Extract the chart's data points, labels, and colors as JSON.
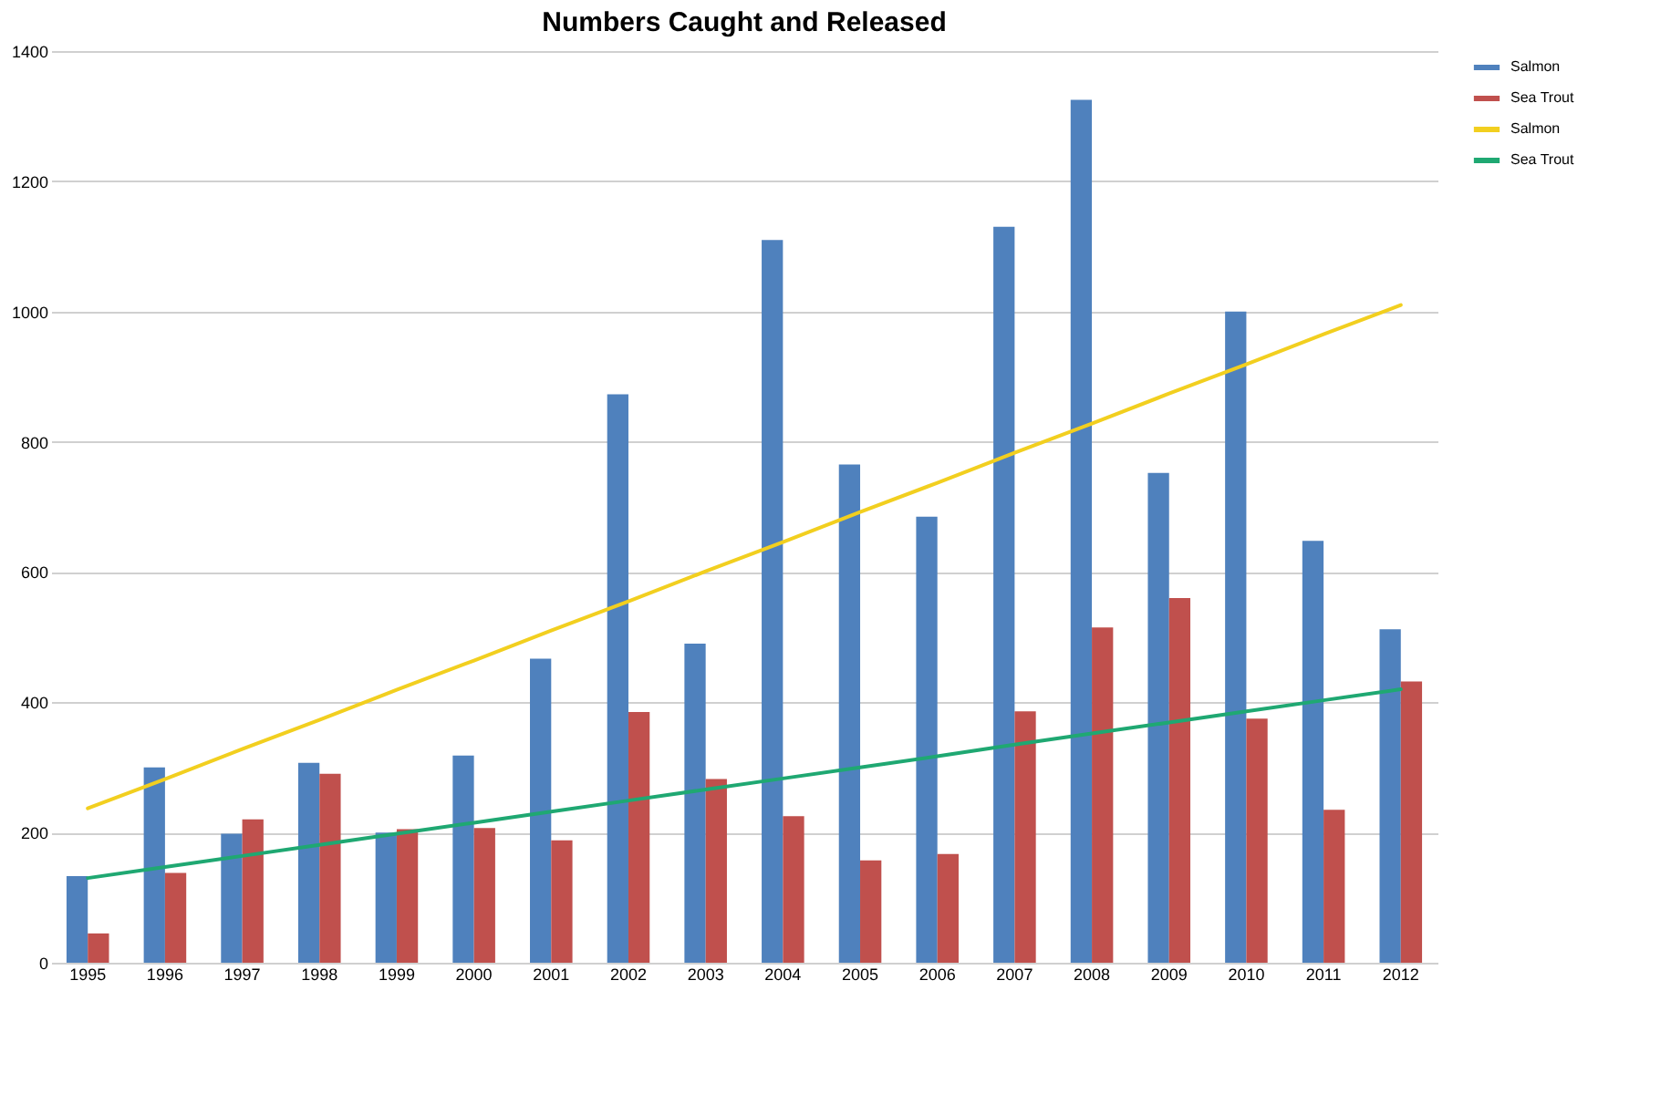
{
  "chart_data": {
    "type": "bar",
    "title": "Numbers Caught and Released",
    "categories": [
      "1995",
      "1996",
      "1997",
      "1998",
      "1999",
      "2000",
      "2001",
      "2002",
      "2003",
      "2004",
      "2005",
      "2006",
      "2007",
      "2008",
      "2009",
      "2010",
      "2011",
      "2012"
    ],
    "series": [
      {
        "name": "Salmon",
        "color": "#4f81bd",
        "values": [
          133,
          300,
          198,
          307,
          200,
          318,
          467,
          873,
          490,
          1110,
          765,
          685,
          1130,
          1325,
          752,
          1000,
          648,
          512
        ]
      },
      {
        "name": "Sea Trout",
        "color": "#c0504d",
        "values": [
          45,
          138,
          220,
          290,
          205,
          207,
          188,
          385,
          282,
          225,
          157,
          167,
          386,
          515,
          560,
          375,
          235,
          432
        ]
      },
      {
        "name": "Salmon",
        "type": "line",
        "color": "#f2cf1f",
        "values": [
          237,
          282,
          328,
          373,
          419,
          464,
          510,
          555,
          601,
          646,
          692,
          737,
          783,
          828,
          874,
          919,
          965,
          1010
        ]
      },
      {
        "name": "Sea Trout",
        "type": "line",
        "color": "#1fa872",
        "values": [
          130,
          147,
          164,
          181,
          198,
          215,
          232,
          249,
          266,
          283,
          300,
          317,
          335,
          352,
          369,
          386,
          403,
          420
        ]
      }
    ],
    "ylim": [
      0,
      1400
    ],
    "yticks": [
      0,
      200,
      400,
      600,
      800,
      1000,
      1200,
      1400
    ],
    "grid": "y",
    "legend": "right"
  }
}
